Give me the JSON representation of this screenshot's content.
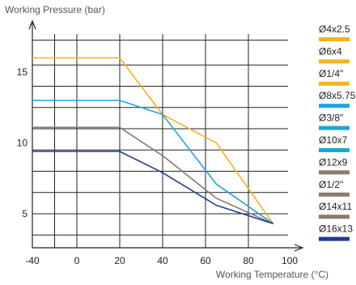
{
  "chart_data": {
    "type": "line",
    "title": "",
    "xlabel": "Working Temperature (°C)",
    "ylabel": "Working Pressure (bar)",
    "xlim": [
      -40,
      100
    ],
    "ylim": [
      3,
      18
    ],
    "x_ticks": [
      -40,
      0,
      20,
      40,
      60,
      80,
      100
    ],
    "x_tick_labels": [
      "-40",
      "0",
      "20",
      "40",
      "60",
      "80",
      "100"
    ],
    "y_ticks": [
      5,
      10,
      15
    ],
    "y_tick_labels": [
      "5",
      "10",
      "15"
    ],
    "grid": true,
    "legend_position": "right",
    "series": [
      {
        "name": "",
        "color": "#f2b51c",
        "points": [
          [
            -40,
            16
          ],
          [
            20,
            16
          ],
          [
            40,
            12
          ],
          [
            65,
            10
          ],
          [
            92,
            4.3
          ]
        ]
      },
      {
        "name": "",
        "color": "#1ea5df",
        "points": [
          [
            -40,
            13
          ],
          [
            20,
            13
          ],
          [
            40,
            12
          ],
          [
            65,
            7.1
          ],
          [
            92,
            4.3
          ]
        ]
      },
      {
        "name": "",
        "color": "#8a7b6b",
        "points": [
          [
            -40,
            11.1
          ],
          [
            20,
            11.1
          ],
          [
            40,
            9.1
          ],
          [
            65,
            6.1
          ],
          [
            92,
            4.3
          ]
        ]
      },
      {
        "name": "",
        "color": "#233c8c",
        "points": [
          [
            -40,
            9.4
          ],
          [
            20,
            9.4
          ],
          [
            40,
            7.9
          ],
          [
            65,
            5.6
          ],
          [
            92,
            4.3
          ]
        ]
      }
    ],
    "legend": [
      {
        "label": "Ø4x2.5",
        "color": "#f2b51c"
      },
      {
        "label": "Ø6x4",
        "color": "#f2b51c"
      },
      {
        "label": "Ø1/4\"",
        "color": "#f2b51c"
      },
      {
        "label": "Ø8x5.75",
        "color": "#1ea5df"
      },
      {
        "label": "Ø3/8\"",
        "color": "#1ea5df"
      },
      {
        "label": "Ø10x7",
        "color": "#1ea5df"
      },
      {
        "label": "Ø12x9",
        "color": "#8a7b6b"
      },
      {
        "label": "Ø1/2\"",
        "color": "#8a7b6b"
      },
      {
        "label": "Ø14x11",
        "color": "#8a7b6b"
      },
      {
        "label": "Ø16x13",
        "color": "#233c8c"
      }
    ]
  }
}
